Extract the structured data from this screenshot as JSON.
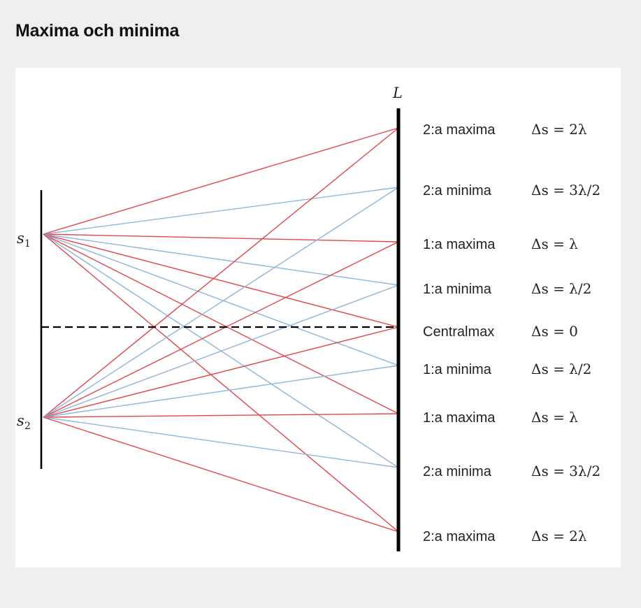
{
  "page": {
    "title": "Maxima och minima"
  },
  "diagram": {
    "screen_label": "L",
    "sources": [
      {
        "name": "s",
        "sub": "1"
      },
      {
        "name": "s",
        "sub": "2"
      }
    ],
    "colors": {
      "maxima_line": "#e0454c",
      "minima_line": "#8fb5d8",
      "axis": "#000000"
    },
    "rows": [
      {
        "label": "2:a maxima",
        "equation": "Δs = 2λ",
        "kind": "max",
        "order": 2
      },
      {
        "label": "2:a minima",
        "equation": "Δs = 3λ/2",
        "kind": "min",
        "order": 2
      },
      {
        "label": "1:a maxima",
        "equation": "Δs = λ",
        "kind": "max",
        "order": 1
      },
      {
        "label": "1:a minima",
        "equation": "Δs = λ/2",
        "kind": "min",
        "order": 1
      },
      {
        "label": "Centralmax",
        "equation": "Δs = 0",
        "kind": "max",
        "order": 0
      },
      {
        "label": "1:a minima",
        "equation": "Δs = λ/2",
        "kind": "min",
        "order": 1
      },
      {
        "label": "1:a maxima",
        "equation": "Δs = λ",
        "kind": "max",
        "order": 1
      },
      {
        "label": "2:a minima",
        "equation": "Δs = 3λ/2",
        "kind": "min",
        "order": 2
      },
      {
        "label": "2:a maxima",
        "equation": "Δs = 2λ",
        "kind": "max",
        "order": 2
      }
    ]
  }
}
